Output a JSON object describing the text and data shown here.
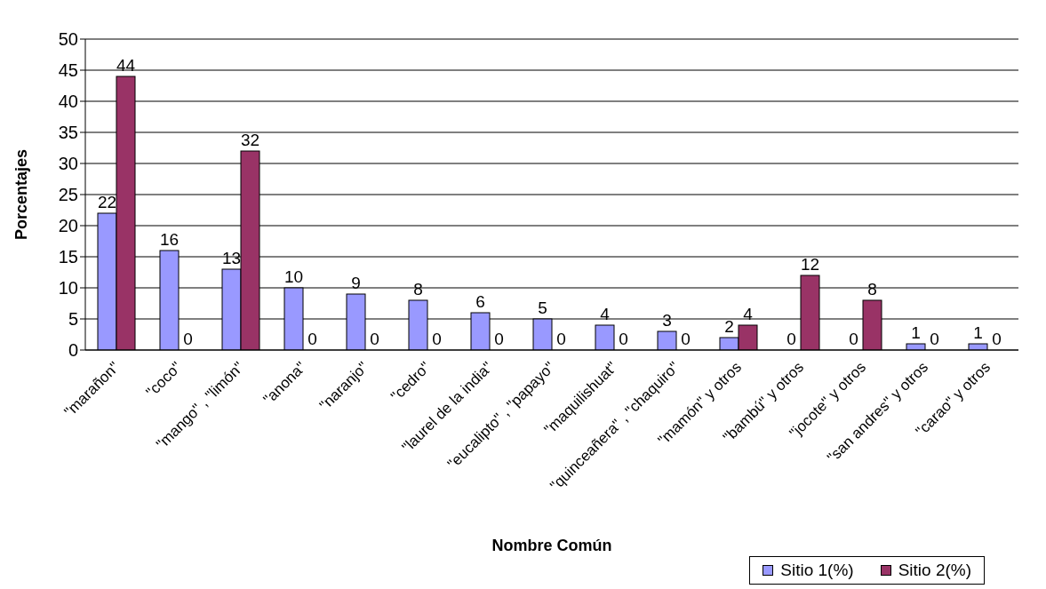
{
  "chart_data": {
    "type": "bar",
    "xlabel": "Nombre Común",
    "ylabel": "Porcentajes",
    "categories": [
      "\"marañon\"",
      "\"coco\"",
      "\"mango\" , \"limón\"",
      "\"anona\"",
      "\"naranjo\"",
      "\"cedro\"",
      "\"laurel de la india\"",
      "\"eucalipto\" , \"papayo\"",
      "\"maquilishuat\"",
      "\"quinceañera\" , \"chaquiro\"",
      "\"mamón\" y otros",
      "\"bambú\" y otros",
      "\"jocote\" y otros",
      "\"san andres\" y otros",
      "\"carao\" y otros"
    ],
    "series": [
      {
        "name": "Sitio 1(%)",
        "color": "#9999ff",
        "values": [
          22,
          16,
          13,
          10,
          9,
          8,
          6,
          5,
          4,
          3,
          2,
          0,
          0,
          1,
          1
        ]
      },
      {
        "name": "Sitio 2(%)",
        "color": "#993366",
        "values": [
          44,
          0,
          32,
          0,
          0,
          0,
          0,
          0,
          0,
          0,
          4,
          12,
          8,
          0,
          0
        ]
      }
    ],
    "ylim": [
      0,
      50
    ],
    "yticks": [
      0,
      5,
      10,
      15,
      20,
      25,
      30,
      35,
      40,
      45,
      50
    ],
    "grid": "y",
    "data_labels": true,
    "legend": "bottom right"
  }
}
